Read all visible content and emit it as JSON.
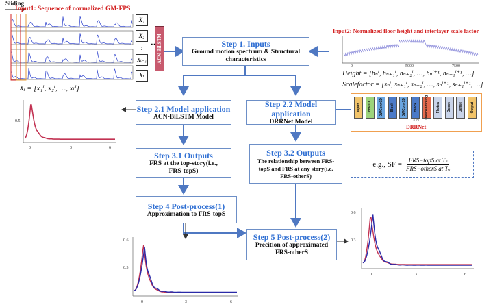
{
  "input1": {
    "sliding_label": "Sliding",
    "title": "Input1: Sequence of normalized GM-FPS",
    "x_labels": [
      "X₁",
      "X₂",
      "⋮",
      "Xₜ₋₁",
      "Xₜ"
    ],
    "model_label": "ACN-BiLSTM",
    "formula": "Xᵢ = [x₁ⁱ, x₂ⁱ, …, xₜⁱ]",
    "ticks": [
      "0.5",
      "0",
      "2500",
      "5000",
      "7500"
    ]
  },
  "input2": {
    "title": "Input2: Normalized floor height and interlayer scale factor",
    "height_formula": "Height = [hₙⁱ, hₙ₊₁ⁱ, hₙ₊₂ⁱ, …, hₙⁱ⁺¹, hₙ₊₁ⁱ⁺¹, …]",
    "scale_formula": "Scalefactor = [sₙⁱ, sₙ₊₁ⁱ, sₙ₊₂ⁱ, …, sₙⁱ⁺¹, sₙ₊₁ⁱ⁺¹, …]",
    "ticks": [
      "0",
      "5000",
      "7500"
    ]
  },
  "steps": {
    "s1": {
      "title": "Step 1. Inputs",
      "body": "Ground motion spectrum & Structural characteristics"
    },
    "s21": {
      "title": "Step 2.1 Model application",
      "body": "ACN-BiLSTM Model"
    },
    "s22": {
      "title": "Step 2.2 Model application",
      "body": "DRRNet Model"
    },
    "s31": {
      "title": "Step 3.1 Outputs",
      "body": "FRS at the top-story(i.e., FRS-topS)"
    },
    "s32": {
      "title": "Step 3.2 Outputs",
      "body": "The relationship between FRS-topS and FRS at any story(i.e. FRS-otherS)"
    },
    "s4": {
      "title": "Step 4 Post-process(1)",
      "body": "Approximation to FRS-topS"
    },
    "s5": {
      "title": "Step 5 Post-process(2)",
      "body": "Precition of approximated FRS-otherS"
    }
  },
  "drrnet": {
    "label": "DRRNet",
    "blocks": [
      {
        "name": "Input",
        "color": "#f2c46a"
      },
      {
        "name": "Conv1D",
        "color": "#9dd37b"
      },
      {
        "name": "DWConv1D",
        "color": "#6aa5e0"
      },
      {
        "name": "Block",
        "color": "#4b7ac8"
      },
      {
        "name": "DWConv1D",
        "color": "#6aa5e0"
      },
      {
        "name": "Block",
        "color": "#4b7ac8"
      },
      {
        "name": "Downsampling",
        "color": "#e46a4c"
      },
      {
        "name": "Flatten",
        "color": "#c9d4ea"
      },
      {
        "name": "Dense",
        "color": "#c9d4ea"
      },
      {
        "name": "Dense",
        "color": "#c9d4ea"
      },
      {
        "name": "Output",
        "color": "#f2c46a"
      }
    ],
    "repeat": "× N"
  },
  "formula_sf": {
    "prefix": "e.g., SF =",
    "numerator": "FRS−topS at Tₛ",
    "denominator": "FRS−otherS at Tₛ"
  },
  "plots": {
    "left_top": {
      "ticks_x": [
        "0",
        "3",
        "6"
      ],
      "ticks_y": [
        "0.5"
      ]
    },
    "left_bottom": {
      "ticks_x": [
        "0",
        "3",
        "6"
      ],
      "ticks_y": [
        "0.6",
        "0.3"
      ]
    },
    "right_bottom": {
      "ticks_x": [
        "0",
        "3",
        "6"
      ],
      "ticks_y": [
        "0.6",
        "0.3"
      ]
    }
  },
  "colors": {
    "accent_blue": "#2f6fd3",
    "box_border": "#6d8fc7",
    "input_red": "#d32222",
    "curve_red": "#c23252",
    "curve_blue": "#2a2aa8"
  }
}
